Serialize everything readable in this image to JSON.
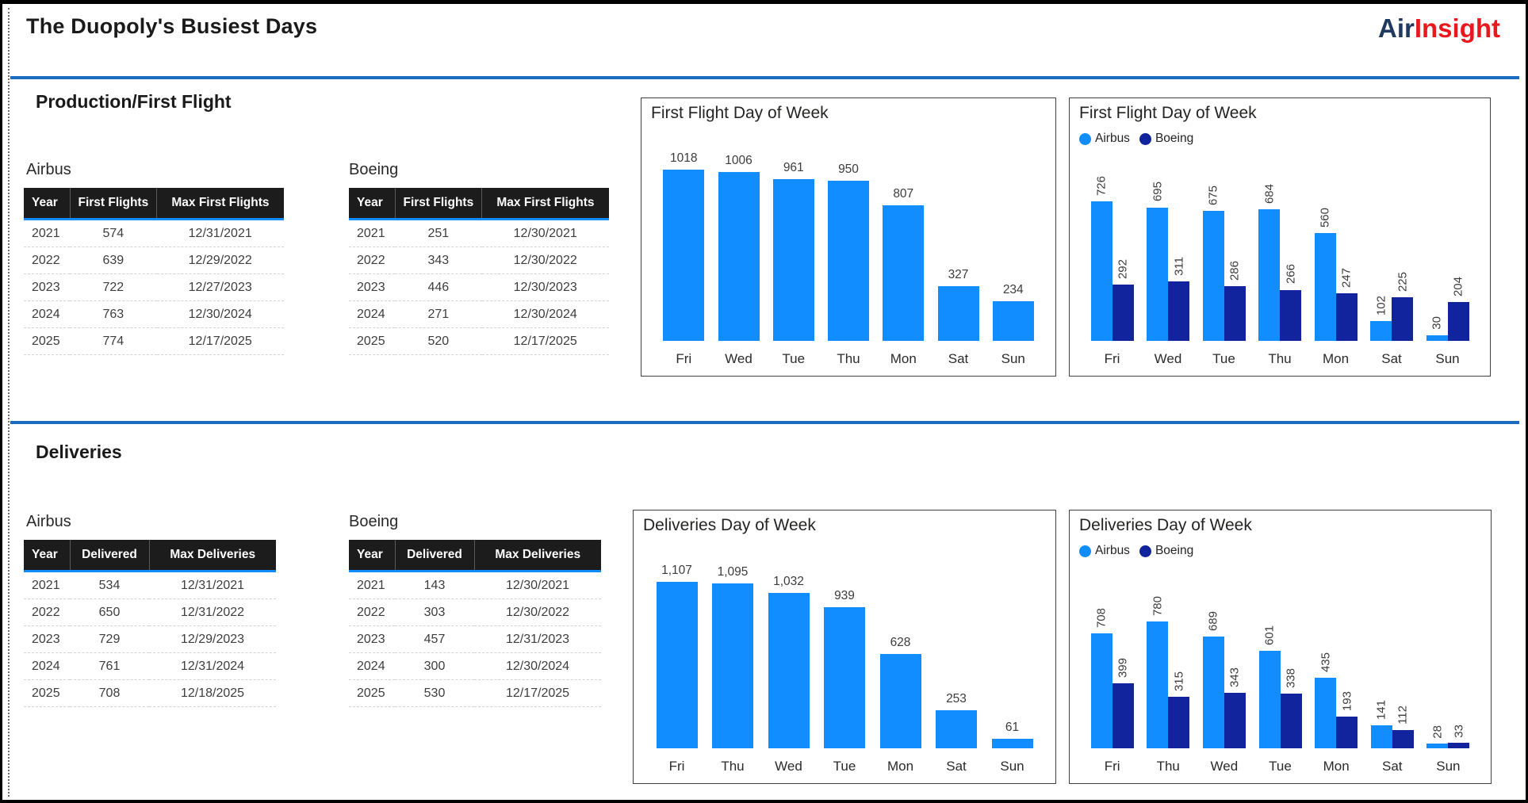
{
  "header": {
    "title": "The Duopoly's Busiest Days",
    "logo": {
      "part1": "Air",
      "part2": "Insight"
    }
  },
  "colors": {
    "airbus": "#118DFF",
    "boeing": "#12239E",
    "divider": "#1A6CC0",
    "table_header_bg": "#1C1C1C",
    "logo_air": "#1F3A5F",
    "logo_insight": "#E8181D"
  },
  "sections": {
    "production": {
      "heading": "Production/First Flight",
      "airbus": {
        "label": "Airbus",
        "headers": [
          "Year",
          "First Flights",
          "Max First Flights"
        ],
        "rows": [
          [
            "2021",
            "574",
            "12/31/2021"
          ],
          [
            "2022",
            "639",
            "12/29/2022"
          ],
          [
            "2023",
            "722",
            "12/27/2023"
          ],
          [
            "2024",
            "763",
            "12/30/2024"
          ],
          [
            "2025",
            "774",
            "12/17/2025"
          ]
        ]
      },
      "boeing": {
        "label": "Boeing",
        "headers": [
          "Year",
          "First Flights",
          "Max First Flights"
        ],
        "rows": [
          [
            "2021",
            "251",
            "12/30/2021"
          ],
          [
            "2022",
            "343",
            "12/30/2022"
          ],
          [
            "2023",
            "446",
            "12/30/2023"
          ],
          [
            "2024",
            "271",
            "12/30/2024"
          ],
          [
            "2025",
            "520",
            "12/17/2025"
          ]
        ]
      }
    },
    "deliveries": {
      "heading": "Deliveries",
      "airbus": {
        "label": "Airbus",
        "headers": [
          "Year",
          "Delivered",
          "Max Deliveries"
        ],
        "rows": [
          [
            "2021",
            "534",
            "12/31/2021"
          ],
          [
            "2022",
            "650",
            "12/31/2022"
          ],
          [
            "2023",
            "729",
            "12/29/2023"
          ],
          [
            "2024",
            "761",
            "12/31/2024"
          ],
          [
            "2025",
            "708",
            "12/18/2025"
          ]
        ]
      },
      "boeing": {
        "label": "Boeing",
        "headers": [
          "Year",
          "Delivered",
          "Max Deliveries"
        ],
        "rows": [
          [
            "2021",
            "143",
            "12/30/2021"
          ],
          [
            "2022",
            "303",
            "12/30/2022"
          ],
          [
            "2023",
            "457",
            "12/31/2023"
          ],
          [
            "2024",
            "300",
            "12/30/2024"
          ],
          [
            "2025",
            "530",
            "12/17/2025"
          ]
        ]
      }
    }
  },
  "chart_data": [
    {
      "type": "bar",
      "title": "First Flight Day of Week",
      "categories": [
        "Fri",
        "Wed",
        "Tue",
        "Thu",
        "Mon",
        "Sat",
        "Sun"
      ],
      "values": [
        1018,
        1006,
        961,
        950,
        807,
        327,
        234
      ],
      "value_label_texts": [
        "1018",
        "1006",
        "961",
        "950",
        "807",
        "327",
        "234"
      ],
      "color": "#118DFF",
      "value_labels": "horizontal",
      "y_axis": "hidden",
      "gridlines": false,
      "legend_position": "none"
    },
    {
      "type": "bar",
      "title": "First Flight Day of Week",
      "categories": [
        "Fri",
        "Wed",
        "Tue",
        "Thu",
        "Mon",
        "Sat",
        "Sun"
      ],
      "series": [
        {
          "name": "Airbus",
          "color": "#118DFF",
          "values": [
            726,
            695,
            675,
            684,
            560,
            102,
            30
          ]
        },
        {
          "name": "Boeing",
          "color": "#12239E",
          "values": [
            292,
            311,
            286,
            266,
            247,
            225,
            204
          ]
        }
      ],
      "value_labels": "rotated",
      "y_axis": "hidden",
      "gridlines": false,
      "legend_position": "top-left"
    },
    {
      "type": "bar",
      "title": "Deliveries Day of Week",
      "categories": [
        "Fri",
        "Thu",
        "Wed",
        "Tue",
        "Mon",
        "Sat",
        "Sun"
      ],
      "values": [
        1107,
        1095,
        1032,
        939,
        628,
        253,
        61
      ],
      "value_label_texts": [
        "1,107",
        "1,095",
        "1,032",
        "939",
        "628",
        "253",
        "61"
      ],
      "color": "#118DFF",
      "value_labels": "horizontal",
      "y_axis": "hidden",
      "gridlines": false,
      "legend_position": "none"
    },
    {
      "type": "bar",
      "title": "Deliveries Day of Week",
      "categories": [
        "Fri",
        "Thu",
        "Wed",
        "Tue",
        "Mon",
        "Sat",
        "Sun"
      ],
      "series": [
        {
          "name": "Airbus",
          "color": "#118DFF",
          "values": [
            708,
            780,
            689,
            601,
            435,
            141,
            28
          ]
        },
        {
          "name": "Boeing",
          "color": "#12239E",
          "values": [
            399,
            315,
            343,
            338,
            193,
            112,
            33
          ]
        }
      ],
      "value_labels": "rotated",
      "y_axis": "hidden",
      "gridlines": false,
      "legend_position": "top-left"
    }
  ]
}
